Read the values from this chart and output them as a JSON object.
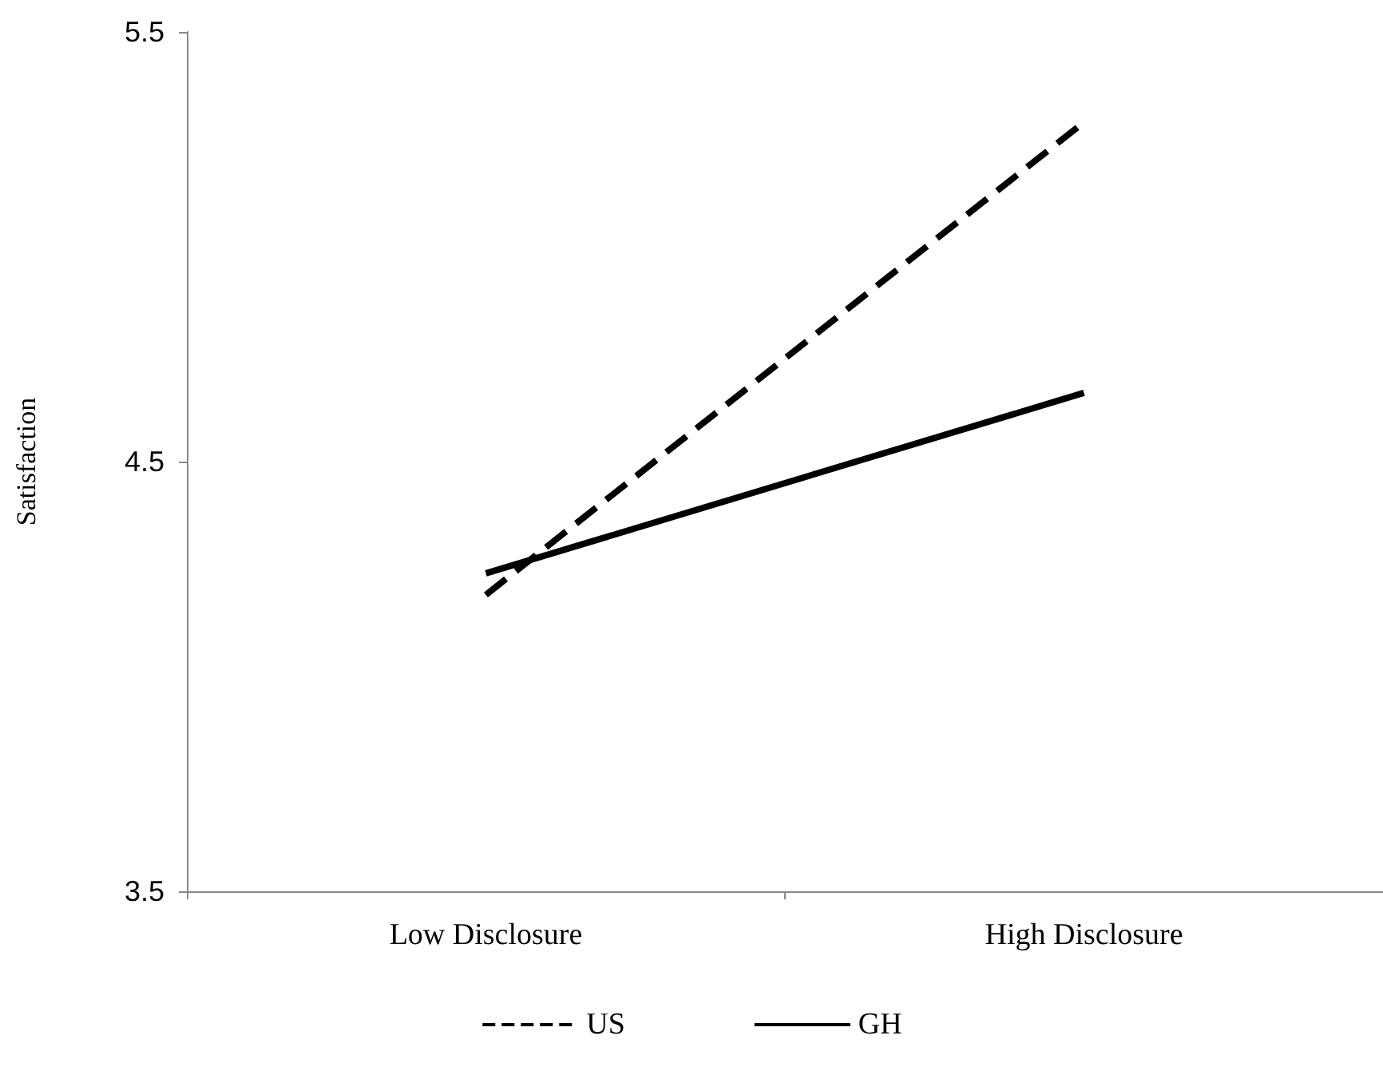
{
  "chart_data": {
    "type": "line",
    "ylabel": "Satisfaction",
    "categories": [
      "Low Disclosure",
      "High Disclosure"
    ],
    "series": [
      {
        "name": "US",
        "color": "#000000",
        "values": [
          4.19,
          5.29
        ],
        "line_style": "dashed"
      },
      {
        "name": "GH",
        "color": "#000000",
        "values": [
          4.24,
          4.66
        ],
        "line_style": "solid"
      }
    ],
    "ylim": [
      3.5,
      5.5
    ],
    "yticks": [
      3.5,
      4.5,
      5.5
    ],
    "grid": false,
    "legend": "bottom",
    "marker": "none"
  }
}
